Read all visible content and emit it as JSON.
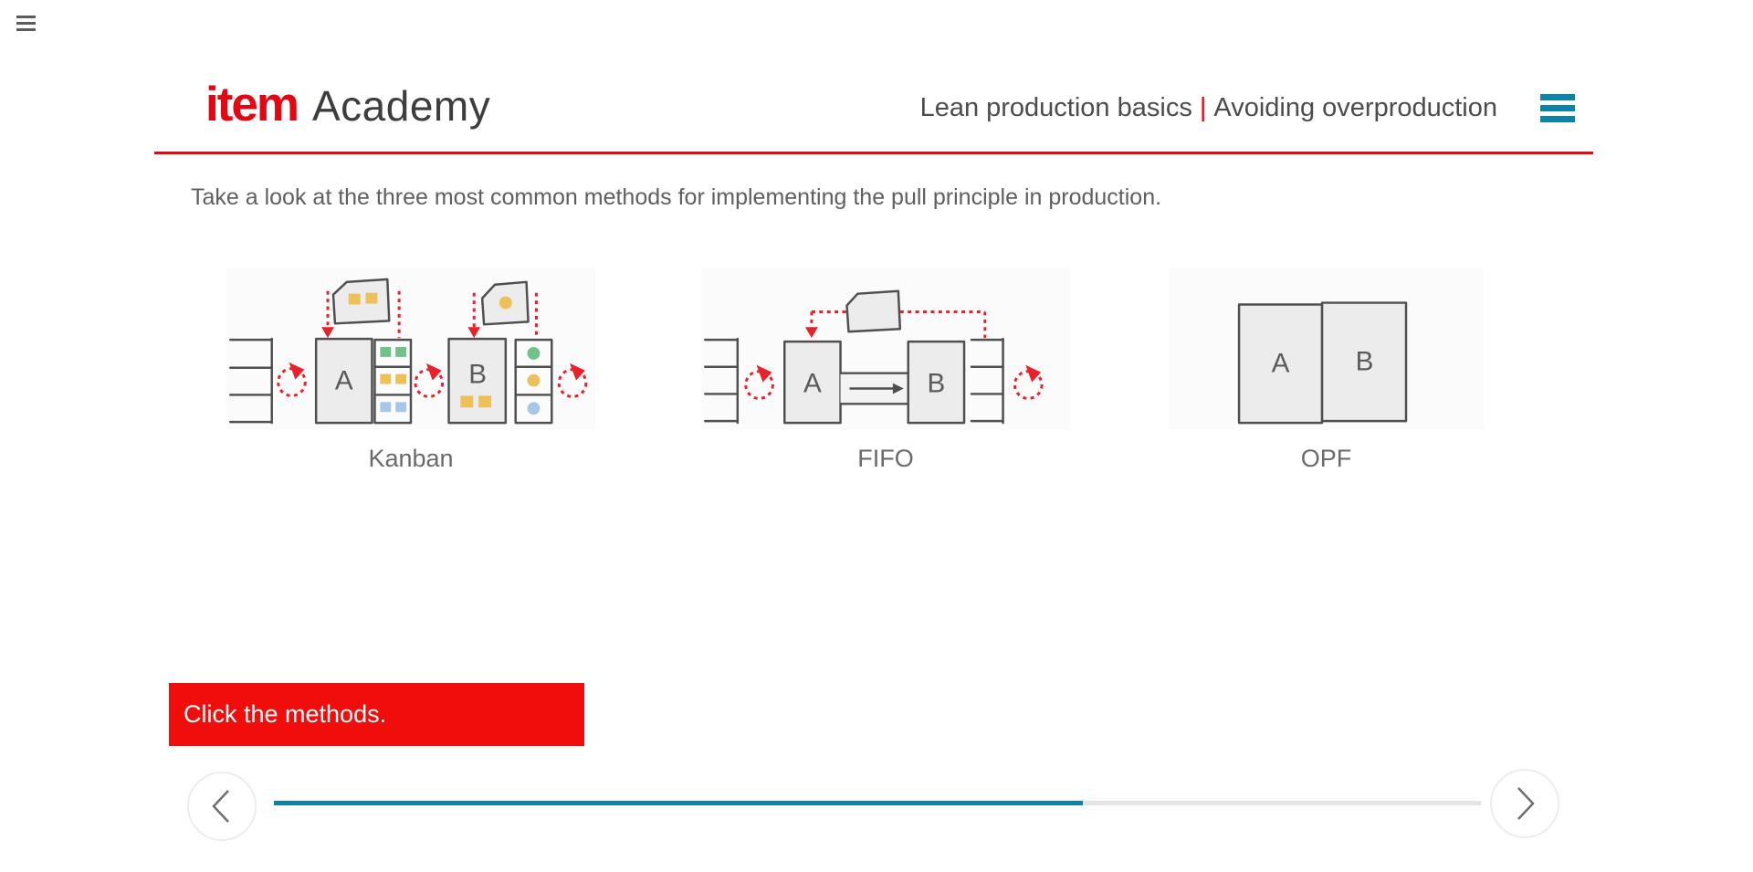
{
  "window": {
    "menu_icon": "hamburger"
  },
  "header": {
    "brand": "item",
    "brand_suffix": "Academy",
    "course": "Lean production basics",
    "divider": "|",
    "lesson": "Avoiding overproduction"
  },
  "main": {
    "instruction": "Take a look at the three most common methods for implementing the pull principle in production.",
    "methods": [
      {
        "id": "kanban",
        "label": "Kanban"
      },
      {
        "id": "fifo",
        "label": "FIFO"
      },
      {
        "id": "opf",
        "label": "OPF"
      }
    ],
    "station_labels": {
      "a": "A",
      "b": "B"
    }
  },
  "prompt": {
    "text": "Click the methods."
  },
  "player": {
    "progress_percent": 67
  },
  "colors": {
    "brand_red": "#e30613",
    "banner_red": "#f20d0d",
    "teal": "#0c84a7",
    "dashed_red": "#e8212b",
    "ink": "#4f4f4f",
    "yellow": "#edc05a",
    "green": "#71c289",
    "blue": "#a6c8e6"
  }
}
